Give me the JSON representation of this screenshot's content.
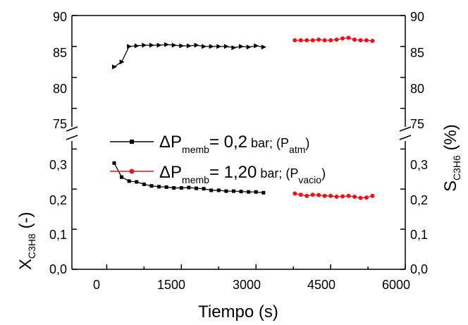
{
  "chart_data": {
    "type": "scatter",
    "xlabel": "Tiempo (s)",
    "x_ticks": [
      "0",
      "1500",
      "3000",
      "4500",
      "6000"
    ],
    "xlim": [
      -700,
      6000
    ],
    "upper_panel": {
      "ylabel_main": "S",
      "ylabel_sub": "C3H6",
      "ylabel_unit": " (%)",
      "ylim": [
        72,
        90
      ],
      "y_ticks": [
        "75",
        "80",
        "85",
        "90"
      ],
      "y_ticks_right": [
        "75",
        "80",
        "85",
        "90"
      ]
    },
    "lower_panel": {
      "ylabel_main": "X",
      "ylabel_sub": "C3H8",
      "ylabel_unit": " (-)",
      "ylim": [
        0,
        0.32
      ],
      "y_ticks": [
        "0,0",
        "0,1",
        "0,2",
        "0,3"
      ],
      "y_ticks_right": [
        "0,0",
        "0,1",
        "0,2",
        "0,3"
      ]
    },
    "series": [
      {
        "color": "#000000",
        "legend": {
          "prefix": "ΔP",
          "sub1": "memb",
          "mid": "= 0,2",
          "unit": " bar; (P",
          "sub2": "atm",
          "close": ")"
        },
        "selectivity": {
          "marker": "triangle-right",
          "x": [
            150,
            300,
            450,
            600,
            750,
            900,
            1050,
            1200,
            1350,
            1500,
            1650,
            1800,
            1950,
            2100,
            2250,
            2400,
            2550,
            2700,
            2850,
            3000,
            3150
          ],
          "y": [
            81.7,
            82.5,
            85.0,
            85.1,
            85.2,
            85.2,
            85.2,
            85.3,
            85.2,
            85.1,
            85.1,
            85.2,
            85.0,
            85.0,
            85.0,
            85.0,
            84.8,
            85.0,
            84.9,
            85.1,
            84.9
          ]
        },
        "conversion": {
          "marker": "square",
          "x": [
            150,
            300,
            450,
            600,
            750,
            900,
            1050,
            1200,
            1350,
            1500,
            1650,
            1800,
            1950,
            2100,
            2250,
            2400,
            2550,
            2700,
            2850,
            3000,
            3150
          ],
          "y": [
            0.265,
            0.23,
            0.22,
            0.218,
            0.212,
            0.208,
            0.206,
            0.205,
            0.203,
            0.203,
            0.204,
            0.202,
            0.201,
            0.197,
            0.197,
            0.195,
            0.195,
            0.194,
            0.193,
            0.193,
            0.191
          ]
        }
      },
      {
        "color": "#e8131b",
        "legend": {
          "prefix": "ΔP",
          "sub1": "memb",
          "mid": "= 1,20",
          "unit": " bar; (P",
          "sub2": "vacio",
          "close": ")"
        },
        "selectivity": {
          "marker": "circle",
          "x": [
            3780,
            3900,
            4020,
            4140,
            4260,
            4380,
            4500,
            4620,
            4740,
            4860,
            4980,
            5100,
            5220,
            5340
          ],
          "y": [
            86.0,
            86.0,
            86.0,
            86.0,
            86.1,
            86.0,
            86.0,
            86.1,
            86.3,
            86.4,
            86.1,
            86.0,
            86.0,
            85.9
          ]
        },
        "conversion": {
          "marker": "circle",
          "x": [
            3780,
            3900,
            4020,
            4140,
            4260,
            4380,
            4500,
            4620,
            4740,
            4860,
            4980,
            5100,
            5220,
            5340
          ],
          "y": [
            0.189,
            0.186,
            0.183,
            0.186,
            0.185,
            0.183,
            0.183,
            0.181,
            0.182,
            0.183,
            0.181,
            0.178,
            0.179,
            0.183
          ]
        }
      }
    ]
  }
}
